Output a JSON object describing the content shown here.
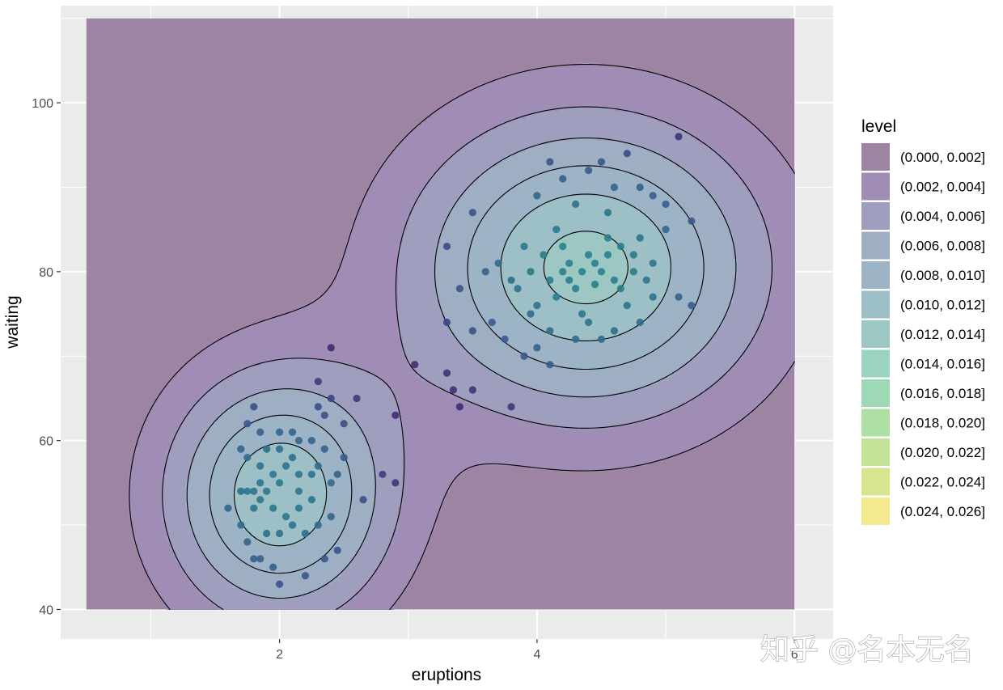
{
  "chart_data": {
    "type": "scatter",
    "xlabel": "eruptions",
    "ylabel": "waiting",
    "xlim": [
      0.3,
      6.3
    ],
    "ylim": [
      36.5,
      111.5
    ],
    "x_ticks": [
      2,
      4,
      6
    ],
    "y_ticks": [
      40,
      60,
      80,
      100
    ],
    "x_tick_labels": [
      "2",
      "4",
      "6"
    ],
    "y_tick_labels": [
      "40",
      "60",
      "80",
      "100"
    ],
    "grid": true,
    "legend_position": "right",
    "density_region": {
      "x": [
        0.5,
        6.0
      ],
      "y": [
        40,
        110
      ]
    },
    "density_components": [
      {
        "mx": 2.0,
        "my": 53.5,
        "sx": 0.62,
        "sy": 10.5,
        "w": 0.48
      },
      {
        "mx": 4.38,
        "my": 80.5,
        "sx": 0.95,
        "sy": 12.5,
        "w": 0.95
      }
    ],
    "legend": {
      "title": "level",
      "entries": [
        {
          "label": "(0.000, 0.002]",
          "color": "#9D84A3"
        },
        {
          "label": "(0.002, 0.004]",
          "color": "#A08DB5"
        },
        {
          "label": "(0.004, 0.006]",
          "color": "#9F9EBF"
        },
        {
          "label": "(0.006, 0.008]",
          "color": "#9EAFC4"
        },
        {
          "label": "(0.008, 0.010]",
          "color": "#9DB3C6"
        },
        {
          "label": "(0.010, 0.012]",
          "color": "#9CC0C6"
        },
        {
          "label": "(0.012, 0.014]",
          "color": "#9CC7C3"
        },
        {
          "label": "(0.014, 0.016]",
          "color": "#9AD3C0"
        },
        {
          "label": "(0.016, 0.018]",
          "color": "#9ED9B6"
        },
        {
          "label": "(0.018, 0.020]",
          "color": "#AEE0A6"
        },
        {
          "label": "(0.020, 0.022]",
          "color": "#C3E498"
        },
        {
          "label": "(0.022, 0.024]",
          "color": "#D9E58E"
        },
        {
          "label": "(0.024, 0.026]",
          "color": "#F4E98E"
        }
      ]
    },
    "points": [
      [
        5.1,
        96
      ],
      [
        4.7,
        94
      ],
      [
        4.1,
        93
      ],
      [
        4.5,
        93
      ],
      [
        4.9,
        89
      ],
      [
        4.6,
        90
      ],
      [
        4.2,
        91
      ],
      [
        3.5,
        87
      ],
      [
        3.3,
        83
      ],
      [
        4.0,
        89
      ],
      [
        4.4,
        92
      ],
      [
        4.8,
        90
      ],
      [
        5.0,
        88
      ],
      [
        5.0,
        85
      ],
      [
        5.2,
        86
      ],
      [
        4.3,
        88
      ],
      [
        4.55,
        87
      ],
      [
        4.15,
        85
      ],
      [
        3.7,
        81
      ],
      [
        3.9,
        83
      ],
      [
        3.8,
        79
      ],
      [
        3.6,
        80
      ],
      [
        3.4,
        78
      ],
      [
        3.5,
        73
      ],
      [
        3.9,
        70
      ],
      [
        4.0,
        71
      ],
      [
        4.1,
        69
      ],
      [
        4.35,
        75
      ],
      [
        4.4,
        74
      ],
      [
        4.6,
        73
      ],
      [
        4.7,
        76
      ],
      [
        4.9,
        77
      ],
      [
        5.1,
        77
      ],
      [
        5.2,
        76
      ],
      [
        4.85,
        79
      ],
      [
        4.75,
        80
      ],
      [
        4.25,
        79
      ],
      [
        4.45,
        81
      ],
      [
        4.55,
        82
      ],
      [
        4.2,
        83
      ],
      [
        4.05,
        82
      ],
      [
        3.95,
        80
      ],
      [
        3.85,
        78
      ],
      [
        4.0,
        76
      ],
      [
        4.15,
        77
      ],
      [
        4.3,
        78
      ],
      [
        4.45,
        78.5
      ],
      [
        4.6,
        79
      ],
      [
        4.35,
        80
      ],
      [
        4.5,
        80
      ],
      [
        4.25,
        81
      ],
      [
        4.4,
        82
      ],
      [
        4.55,
        84
      ],
      [
        4.65,
        83
      ],
      [
        4.75,
        82
      ],
      [
        4.8,
        84
      ],
      [
        4.9,
        81
      ],
      [
        4.65,
        78
      ],
      [
        4.1,
        79
      ],
      [
        4.2,
        80
      ],
      [
        3.75,
        72
      ],
      [
        3.65,
        74
      ],
      [
        3.95,
        75
      ],
      [
        4.1,
        73
      ],
      [
        4.3,
        72
      ],
      [
        4.5,
        72
      ],
      [
        4.8,
        74
      ],
      [
        3.3,
        74
      ],
      [
        3.3,
        68
      ],
      [
        3.35,
        66
      ],
      [
        3.5,
        66
      ],
      [
        3.4,
        64
      ],
      [
        3.8,
        64
      ],
      [
        3.05,
        69
      ],
      [
        2.9,
        63
      ],
      [
        2.6,
        65
      ],
      [
        2.4,
        71
      ],
      [
        2.3,
        67
      ],
      [
        2.8,
        56
      ],
      [
        2.9,
        55
      ],
      [
        2.3,
        64
      ],
      [
        2.4,
        65
      ],
      [
        2.5,
        62
      ],
      [
        2.35,
        63
      ],
      [
        1.8,
        64
      ],
      [
        1.75,
        62
      ],
      [
        1.85,
        61
      ],
      [
        2.25,
        60
      ],
      [
        2.35,
        59
      ],
      [
        2.1,
        61
      ],
      [
        2.0,
        61
      ],
      [
        1.7,
        59
      ],
      [
        1.7,
        54
      ],
      [
        1.75,
        54
      ],
      [
        1.8,
        54
      ],
      [
        1.9,
        54
      ],
      [
        1.6,
        52
      ],
      [
        1.7,
        50
      ],
      [
        1.75,
        48
      ],
      [
        1.8,
        46
      ],
      [
        1.85,
        46
      ],
      [
        1.95,
        45
      ],
      [
        1.9,
        49
      ],
      [
        2.0,
        49
      ],
      [
        2.1,
        50
      ],
      [
        2.2,
        49
      ],
      [
        2.3,
        50
      ],
      [
        2.4,
        51
      ],
      [
        2.45,
        47
      ],
      [
        2.35,
        46
      ],
      [
        2.2,
        44
      ],
      [
        2.0,
        43
      ],
      [
        2.65,
        53
      ],
      [
        2.15,
        56
      ],
      [
        2.0,
        55
      ],
      [
        1.95,
        56
      ],
      [
        2.05,
        57
      ],
      [
        2.25,
        56
      ],
      [
        2.45,
        56
      ],
      [
        2.5,
        58
      ],
      [
        2.4,
        55
      ],
      [
        2.3,
        57
      ],
      [
        1.85,
        57
      ],
      [
        1.75,
        58
      ],
      [
        1.9,
        59
      ],
      [
        2.1,
        58
      ],
      [
        2.15,
        60
      ],
      [
        2.0,
        59
      ],
      [
        1.8,
        52
      ],
      [
        1.85,
        53
      ],
      [
        1.95,
        52
      ],
      [
        2.05,
        51
      ],
      [
        2.15,
        52
      ],
      [
        2.25,
        53
      ],
      [
        2.15,
        54
      ],
      [
        1.85,
        55
      ]
    ]
  },
  "watermark": "知乎 @名本无名"
}
